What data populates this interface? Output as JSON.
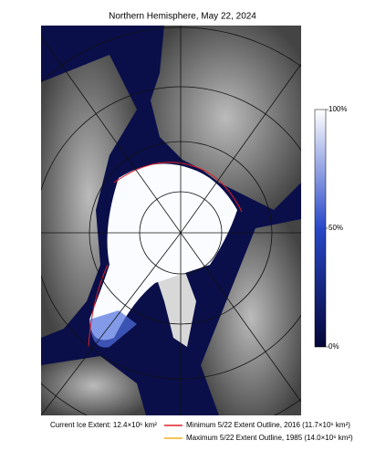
{
  "title": "Northern Hemisphere, May 22, 2024",
  "colorbar": {
    "range": [
      0,
      100
    ],
    "ticks": [
      {
        "value": 100,
        "label": "100%"
      },
      {
        "value": 50,
        "label": "50%"
      },
      {
        "value": 0,
        "label": "0%"
      }
    ]
  },
  "footer": {
    "current_extent": "Current Ice Extent: 12.4×10⁶ km²",
    "legend": [
      {
        "label": "Minimum 5/22 Extent Outline, 2016  (11.7×10⁶ km²)",
        "color": "#e0202a"
      },
      {
        "label": "Maximum 5/22 Extent Outline, 1985  (14.0×10⁶ km²)",
        "color": "#f0b020"
      }
    ]
  }
}
